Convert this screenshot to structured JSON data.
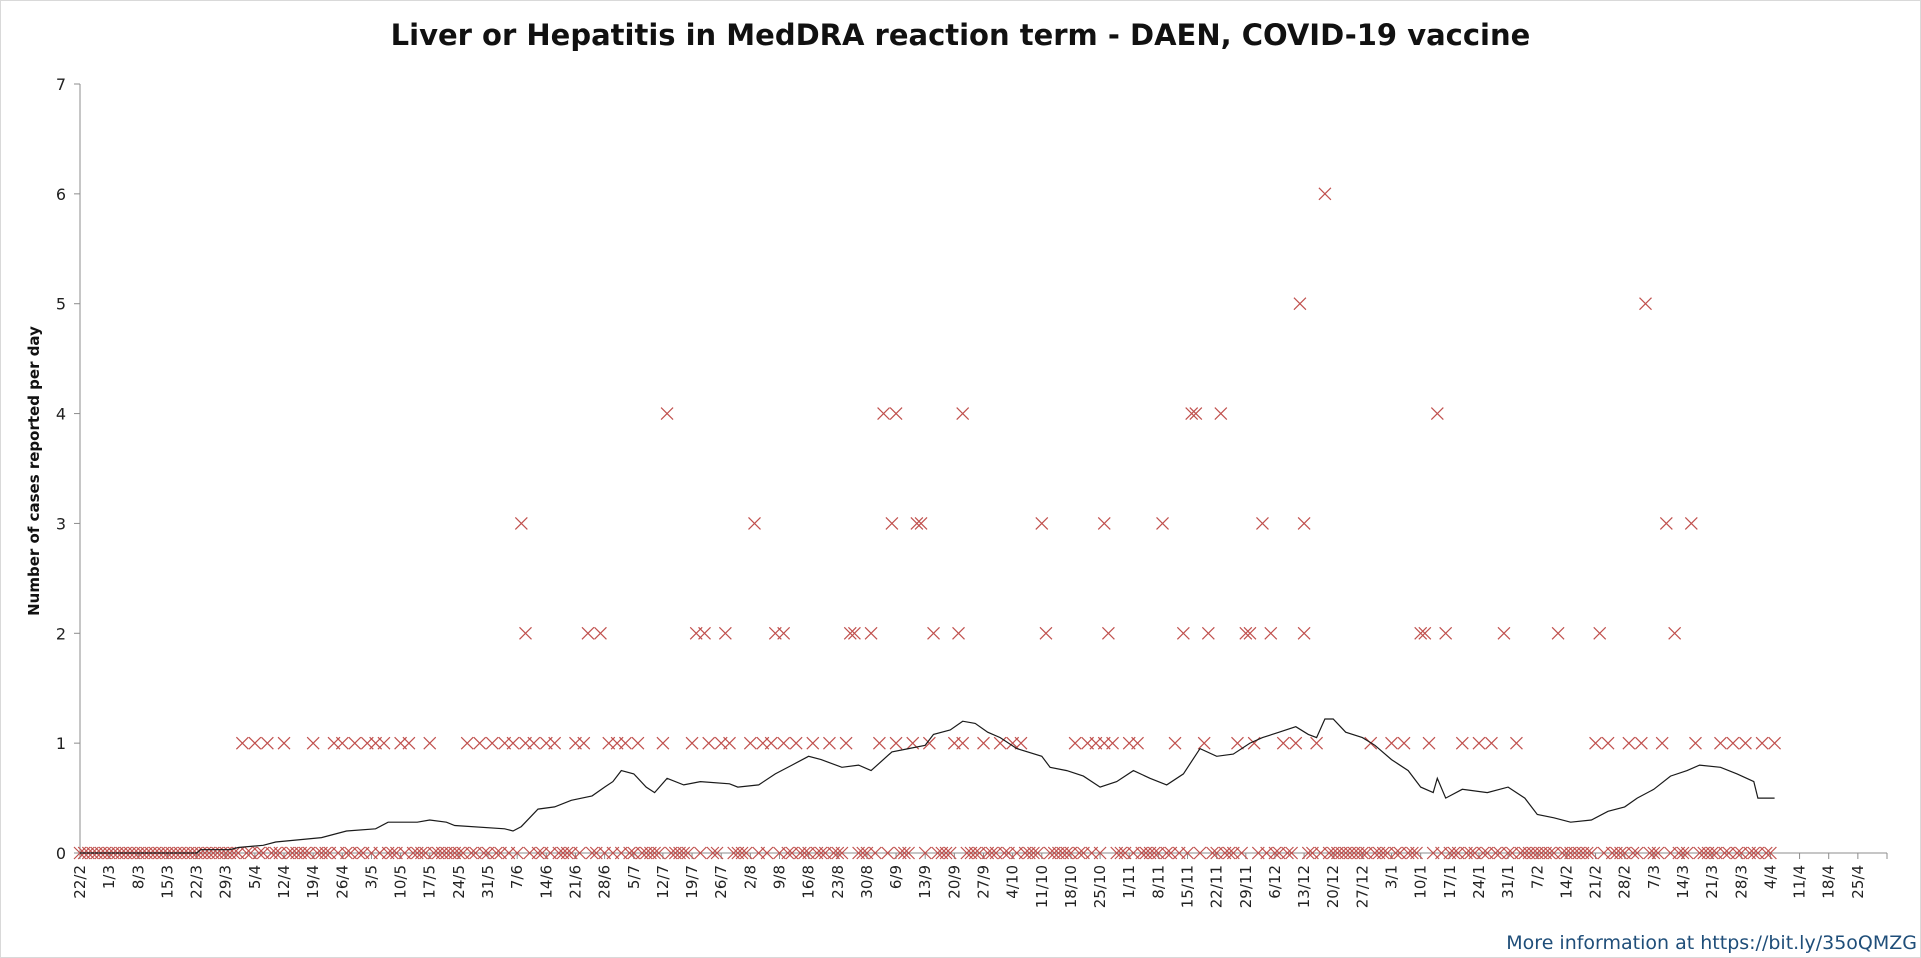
{
  "chart_data": {
    "type": "scatter",
    "title": "Liver or Hepatitis in MedDRA reaction term - DAEN, COVID-19 vaccine",
    "xlabel": "",
    "ylabel": "Number of cases reported per day",
    "ylim": [
      0,
      7
    ],
    "yticks": [
      "0",
      "1",
      "2",
      "3",
      "4",
      "5",
      "6",
      "7"
    ],
    "xlim": [
      "2021-02-22",
      "2022-05-02"
    ],
    "xtick_labels": [
      "22/2",
      "1/3",
      "8/3",
      "15/3",
      "22/3",
      "29/3",
      "5/4",
      "12/4",
      "19/4",
      "26/4",
      "3/5",
      "10/5",
      "17/5",
      "24/5",
      "31/5",
      "7/6",
      "14/6",
      "21/6",
      "28/6",
      "5/7",
      "12/7",
      "19/7",
      "26/7",
      "2/8",
      "9/8",
      "16/8",
      "23/8",
      "30/8",
      "6/9",
      "13/9",
      "20/9",
      "27/9",
      "4/10",
      "11/10",
      "18/10",
      "25/10",
      "1/11",
      "8/11",
      "15/11",
      "22/11",
      "29/11",
      "6/12",
      "13/12",
      "20/12",
      "27/12",
      "3/1",
      "10/1",
      "17/1",
      "24/1",
      "31/1",
      "7/2",
      "14/2",
      "21/2",
      "28/2",
      "7/3",
      "14/3",
      "21/3",
      "28/3",
      "4/4",
      "11/4",
      "18/4",
      "25/4"
    ],
    "grid": false,
    "legend": "none",
    "marker_color": "#c0504d",
    "line_color": "#1a1a1a",
    "series": [
      {
        "type": "scatter",
        "marker": "x",
        "points": [
          [
            "2021-04-02",
            1
          ],
          [
            "2021-04-05",
            1
          ],
          [
            "2021-04-08",
            1
          ],
          [
            "2021-04-12",
            1
          ],
          [
            "2021-04-19",
            1
          ],
          [
            "2021-04-24",
            1
          ],
          [
            "2021-04-26",
            1
          ],
          [
            "2021-04-29",
            1
          ],
          [
            "2021-05-02",
            1
          ],
          [
            "2021-05-04",
            1
          ],
          [
            "2021-05-06",
            1
          ],
          [
            "2021-05-10",
            1
          ],
          [
            "2021-05-12",
            1
          ],
          [
            "2021-05-17",
            1
          ],
          [
            "2021-05-26",
            1
          ],
          [
            "2021-05-29",
            1
          ],
          [
            "2021-06-01",
            1
          ],
          [
            "2021-06-04",
            1
          ],
          [
            "2021-06-06",
            1
          ],
          [
            "2021-06-09",
            1
          ],
          [
            "2021-06-11",
            1
          ],
          [
            "2021-06-14",
            1
          ],
          [
            "2021-06-16",
            1
          ],
          [
            "2021-06-21",
            1
          ],
          [
            "2021-06-23",
            1
          ],
          [
            "2021-06-29",
            1
          ],
          [
            "2021-07-01",
            1
          ],
          [
            "2021-07-03",
            1
          ],
          [
            "2021-07-06",
            1
          ],
          [
            "2021-07-12",
            1
          ],
          [
            "2021-07-19",
            1
          ],
          [
            "2021-07-23",
            1
          ],
          [
            "2021-07-26",
            1
          ],
          [
            "2021-07-28",
            1
          ],
          [
            "2021-08-02",
            1
          ],
          [
            "2021-08-05",
            1
          ],
          [
            "2021-08-07",
            1
          ],
          [
            "2021-08-10",
            1
          ],
          [
            "2021-08-13",
            1
          ],
          [
            "2021-08-17",
            1
          ],
          [
            "2021-08-21",
            1
          ],
          [
            "2021-08-25",
            1
          ],
          [
            "2021-09-02",
            1
          ],
          [
            "2021-09-06",
            1
          ],
          [
            "2021-09-10",
            1
          ],
          [
            "2021-09-14",
            1
          ],
          [
            "2021-09-20",
            1
          ],
          [
            "2021-09-22",
            1
          ],
          [
            "2021-09-27",
            1
          ],
          [
            "2021-10-01",
            1
          ],
          [
            "2021-10-04",
            1
          ],
          [
            "2021-10-06",
            1
          ],
          [
            "2021-10-19",
            1
          ],
          [
            "2021-10-22",
            1
          ],
          [
            "2021-10-24",
            1
          ],
          [
            "2021-10-26",
            1
          ],
          [
            "2021-10-28",
            1
          ],
          [
            "2021-11-01",
            1
          ],
          [
            "2021-11-03",
            1
          ],
          [
            "2021-11-12",
            1
          ],
          [
            "2021-11-19",
            1
          ],
          [
            "2021-11-27",
            1
          ],
          [
            "2021-12-01",
            1
          ],
          [
            "2021-12-08",
            1
          ],
          [
            "2021-12-11",
            1
          ],
          [
            "2021-12-16",
            1
          ],
          [
            "2021-12-29",
            1
          ],
          [
            "2022-01-03",
            1
          ],
          [
            "2022-01-06",
            1
          ],
          [
            "2022-01-12",
            1
          ],
          [
            "2022-01-20",
            1
          ],
          [
            "2022-01-24",
            1
          ],
          [
            "2022-01-27",
            1
          ],
          [
            "2022-02-02",
            1
          ],
          [
            "2022-02-21",
            1
          ],
          [
            "2022-02-24",
            1
          ],
          [
            "2022-03-01",
            1
          ],
          [
            "2022-03-04",
            1
          ],
          [
            "2022-03-09",
            1
          ],
          [
            "2022-03-17",
            1
          ],
          [
            "2022-03-23",
            1
          ],
          [
            "2022-03-26",
            1
          ],
          [
            "2022-03-29",
            1
          ],
          [
            "2022-04-02",
            1
          ],
          [
            "2022-04-05",
            1
          ],
          [
            "2021-06-09",
            2
          ],
          [
            "2021-06-24",
            2
          ],
          [
            "2021-06-27",
            2
          ],
          [
            "2021-07-20",
            2
          ],
          [
            "2021-07-22",
            2
          ],
          [
            "2021-07-27",
            2
          ],
          [
            "2021-08-08",
            2
          ],
          [
            "2021-08-10",
            2
          ],
          [
            "2021-08-26",
            2
          ],
          [
            "2021-08-27",
            2
          ],
          [
            "2021-08-31",
            2
          ],
          [
            "2021-09-15",
            2
          ],
          [
            "2021-09-21",
            2
          ],
          [
            "2021-10-12",
            2
          ],
          [
            "2021-10-27",
            2
          ],
          [
            "2021-11-14",
            2
          ],
          [
            "2021-11-20",
            2
          ],
          [
            "2021-11-29",
            2
          ],
          [
            "2021-11-30",
            2
          ],
          [
            "2021-12-05",
            2
          ],
          [
            "2021-12-13",
            2
          ],
          [
            "2022-01-10",
            2
          ],
          [
            "2022-01-11",
            2
          ],
          [
            "2022-01-16",
            2
          ],
          [
            "2022-01-30",
            2
          ],
          [
            "2022-02-12",
            2
          ],
          [
            "2022-02-22",
            2
          ],
          [
            "2022-03-12",
            2
          ],
          [
            "2021-06-08",
            3
          ],
          [
            "2021-08-03",
            3
          ],
          [
            "2021-09-05",
            3
          ],
          [
            "2021-09-11",
            3
          ],
          [
            "2021-09-12",
            3
          ],
          [
            "2021-10-11",
            3
          ],
          [
            "2021-10-26",
            3
          ],
          [
            "2021-11-09",
            3
          ],
          [
            "2021-12-03",
            3
          ],
          [
            "2021-12-13",
            3
          ],
          [
            "2022-03-10",
            3
          ],
          [
            "2022-03-16",
            3
          ],
          [
            "2021-07-13",
            4
          ],
          [
            "2021-09-03",
            4
          ],
          [
            "2021-09-06",
            4
          ],
          [
            "2021-09-22",
            4
          ],
          [
            "2021-11-16",
            4
          ],
          [
            "2021-11-17",
            4
          ],
          [
            "2021-11-23",
            4
          ],
          [
            "2022-01-14",
            4
          ],
          [
            "2021-12-12",
            5
          ],
          [
            "2022-03-05",
            5
          ],
          [
            "2021-12-18",
            6
          ]
        ]
      },
      {
        "type": "line",
        "points": [
          [
            "2021-02-22",
            0
          ],
          [
            "2021-03-22",
            0
          ],
          [
            "2021-03-23",
            0.03
          ],
          [
            "2021-03-30",
            0.03
          ],
          [
            "2021-04-01",
            0.05
          ],
          [
            "2021-04-07",
            0.07
          ],
          [
            "2021-04-10",
            0.1
          ],
          [
            "2021-04-21",
            0.14
          ],
          [
            "2021-04-27",
            0.2
          ],
          [
            "2021-05-04",
            0.22
          ],
          [
            "2021-05-07",
            0.28
          ],
          [
            "2021-05-14",
            0.28
          ],
          [
            "2021-05-17",
            0.3
          ],
          [
            "2021-05-21",
            0.28
          ],
          [
            "2021-05-23",
            0.25
          ],
          [
            "2021-06-04",
            0.22
          ],
          [
            "2021-06-06",
            0.2
          ],
          [
            "2021-06-08",
            0.24
          ],
          [
            "2021-06-12",
            0.4
          ],
          [
            "2021-06-16",
            0.42
          ],
          [
            "2021-06-20",
            0.48
          ],
          [
            "2021-06-25",
            0.52
          ],
          [
            "2021-06-28",
            0.6
          ],
          [
            "2021-06-30",
            0.65
          ],
          [
            "2021-07-02",
            0.75
          ],
          [
            "2021-07-05",
            0.72
          ],
          [
            "2021-07-08",
            0.6
          ],
          [
            "2021-07-10",
            0.55
          ],
          [
            "2021-07-13",
            0.68
          ],
          [
            "2021-07-17",
            0.62
          ],
          [
            "2021-07-21",
            0.65
          ],
          [
            "2021-07-28",
            0.63
          ],
          [
            "2021-07-30",
            0.6
          ],
          [
            "2021-08-04",
            0.62
          ],
          [
            "2021-08-08",
            0.72
          ],
          [
            "2021-08-12",
            0.8
          ],
          [
            "2021-08-16",
            0.88
          ],
          [
            "2021-08-19",
            0.85
          ],
          [
            "2021-08-24",
            0.78
          ],
          [
            "2021-08-28",
            0.8
          ],
          [
            "2021-08-31",
            0.75
          ],
          [
            "2021-09-05",
            0.92
          ],
          [
            "2021-09-09",
            0.95
          ],
          [
            "2021-09-13",
            0.98
          ],
          [
            "2021-09-15",
            1.08
          ],
          [
            "2021-09-19",
            1.12
          ],
          [
            "2021-09-22",
            1.2
          ],
          [
            "2021-09-25",
            1.18
          ],
          [
            "2021-09-28",
            1.1
          ],
          [
            "2021-10-01",
            1.05
          ],
          [
            "2021-10-05",
            0.95
          ],
          [
            "2021-10-11",
            0.88
          ],
          [
            "2021-10-13",
            0.78
          ],
          [
            "2021-10-17",
            0.75
          ],
          [
            "2021-10-21",
            0.7
          ],
          [
            "2021-10-25",
            0.6
          ],
          [
            "2021-10-29",
            0.65
          ],
          [
            "2021-11-02",
            0.75
          ],
          [
            "2021-11-06",
            0.68
          ],
          [
            "2021-11-10",
            0.62
          ],
          [
            "2021-11-14",
            0.72
          ],
          [
            "2021-11-18",
            0.95
          ],
          [
            "2021-11-22",
            0.88
          ],
          [
            "2021-11-26",
            0.9
          ],
          [
            "2021-11-30",
            1.0
          ],
          [
            "2021-12-03",
            1.05
          ],
          [
            "2021-12-07",
            1.1
          ],
          [
            "2021-12-11",
            1.15
          ],
          [
            "2021-12-14",
            1.08
          ],
          [
            "2021-12-16",
            1.05
          ],
          [
            "2021-12-18",
            1.22
          ],
          [
            "2021-12-20",
            1.22
          ],
          [
            "2021-12-23",
            1.1
          ],
          [
            "2021-12-27",
            1.05
          ],
          [
            "2021-12-30",
            0.98
          ],
          [
            "2022-01-03",
            0.85
          ],
          [
            "2022-01-07",
            0.75
          ],
          [
            "2022-01-10",
            0.6
          ],
          [
            "2022-01-13",
            0.55
          ],
          [
            "2022-01-14",
            0.68
          ],
          [
            "2022-01-16",
            0.5
          ],
          [
            "2022-01-20",
            0.58
          ],
          [
            "2022-01-26",
            0.55
          ],
          [
            "2022-01-31",
            0.6
          ],
          [
            "2022-02-04",
            0.5
          ],
          [
            "2022-02-07",
            0.35
          ],
          [
            "2022-02-11",
            0.32
          ],
          [
            "2022-02-15",
            0.28
          ],
          [
            "2022-02-20",
            0.3
          ],
          [
            "2022-02-24",
            0.38
          ],
          [
            "2022-02-28",
            0.42
          ],
          [
            "2022-03-03",
            0.5
          ],
          [
            "2022-03-07",
            0.58
          ],
          [
            "2022-03-11",
            0.7
          ],
          [
            "2022-03-15",
            0.75
          ],
          [
            "2022-03-18",
            0.8
          ],
          [
            "2022-03-23",
            0.78
          ],
          [
            "2022-03-27",
            0.72
          ],
          [
            "2022-03-31",
            0.65
          ],
          [
            "2022-04-01",
            0.5
          ],
          [
            "2022-04-05",
            0.5
          ]
        ]
      }
    ]
  },
  "footer": "More information at https://bit.ly/35oQMZG"
}
